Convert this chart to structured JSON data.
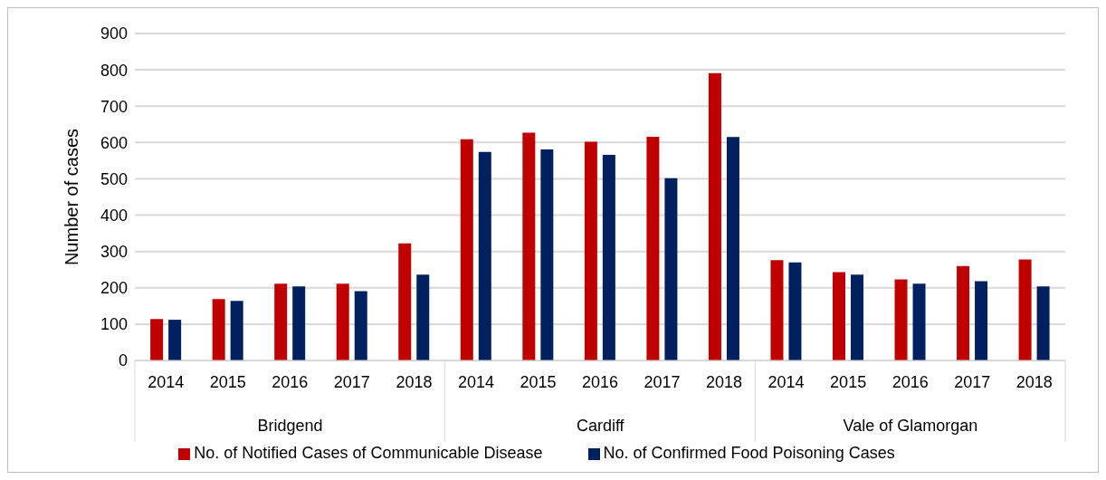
{
  "chart_data": {
    "type": "bar",
    "ylabel": "Number of cases",
    "categories": [
      "2014",
      "2015",
      "2016",
      "2017",
      "2018",
      "2014",
      "2015",
      "2016",
      "2017",
      "2018",
      "2014",
      "2015",
      "2016",
      "2017",
      "2018"
    ],
    "annotations": [
      "Bridgend",
      "Cardiff",
      "Vale of Glamorgan"
    ],
    "series": [
      {
        "name": "No. of  Notified Cases of Communicable Disease",
        "color": "#c00000",
        "values": [
          114,
          169,
          211,
          211,
          322,
          609,
          627,
          602,
          616,
          791,
          276,
          243,
          223,
          260,
          278
        ]
      },
      {
        "name": "No. of Confirmed Food Poisoning Cases",
        "color": "#002060",
        "values": [
          112,
          164,
          204,
          191,
          236,
          574,
          581,
          566,
          502,
          615,
          270,
          236,
          211,
          218,
          204
        ]
      }
    ],
    "ylim": [
      0,
      900
    ],
    "yticks": [
      0,
      100,
      200,
      300,
      400,
      500,
      600,
      700,
      800,
      900
    ],
    "grid": "y",
    "legend": "bottom"
  }
}
